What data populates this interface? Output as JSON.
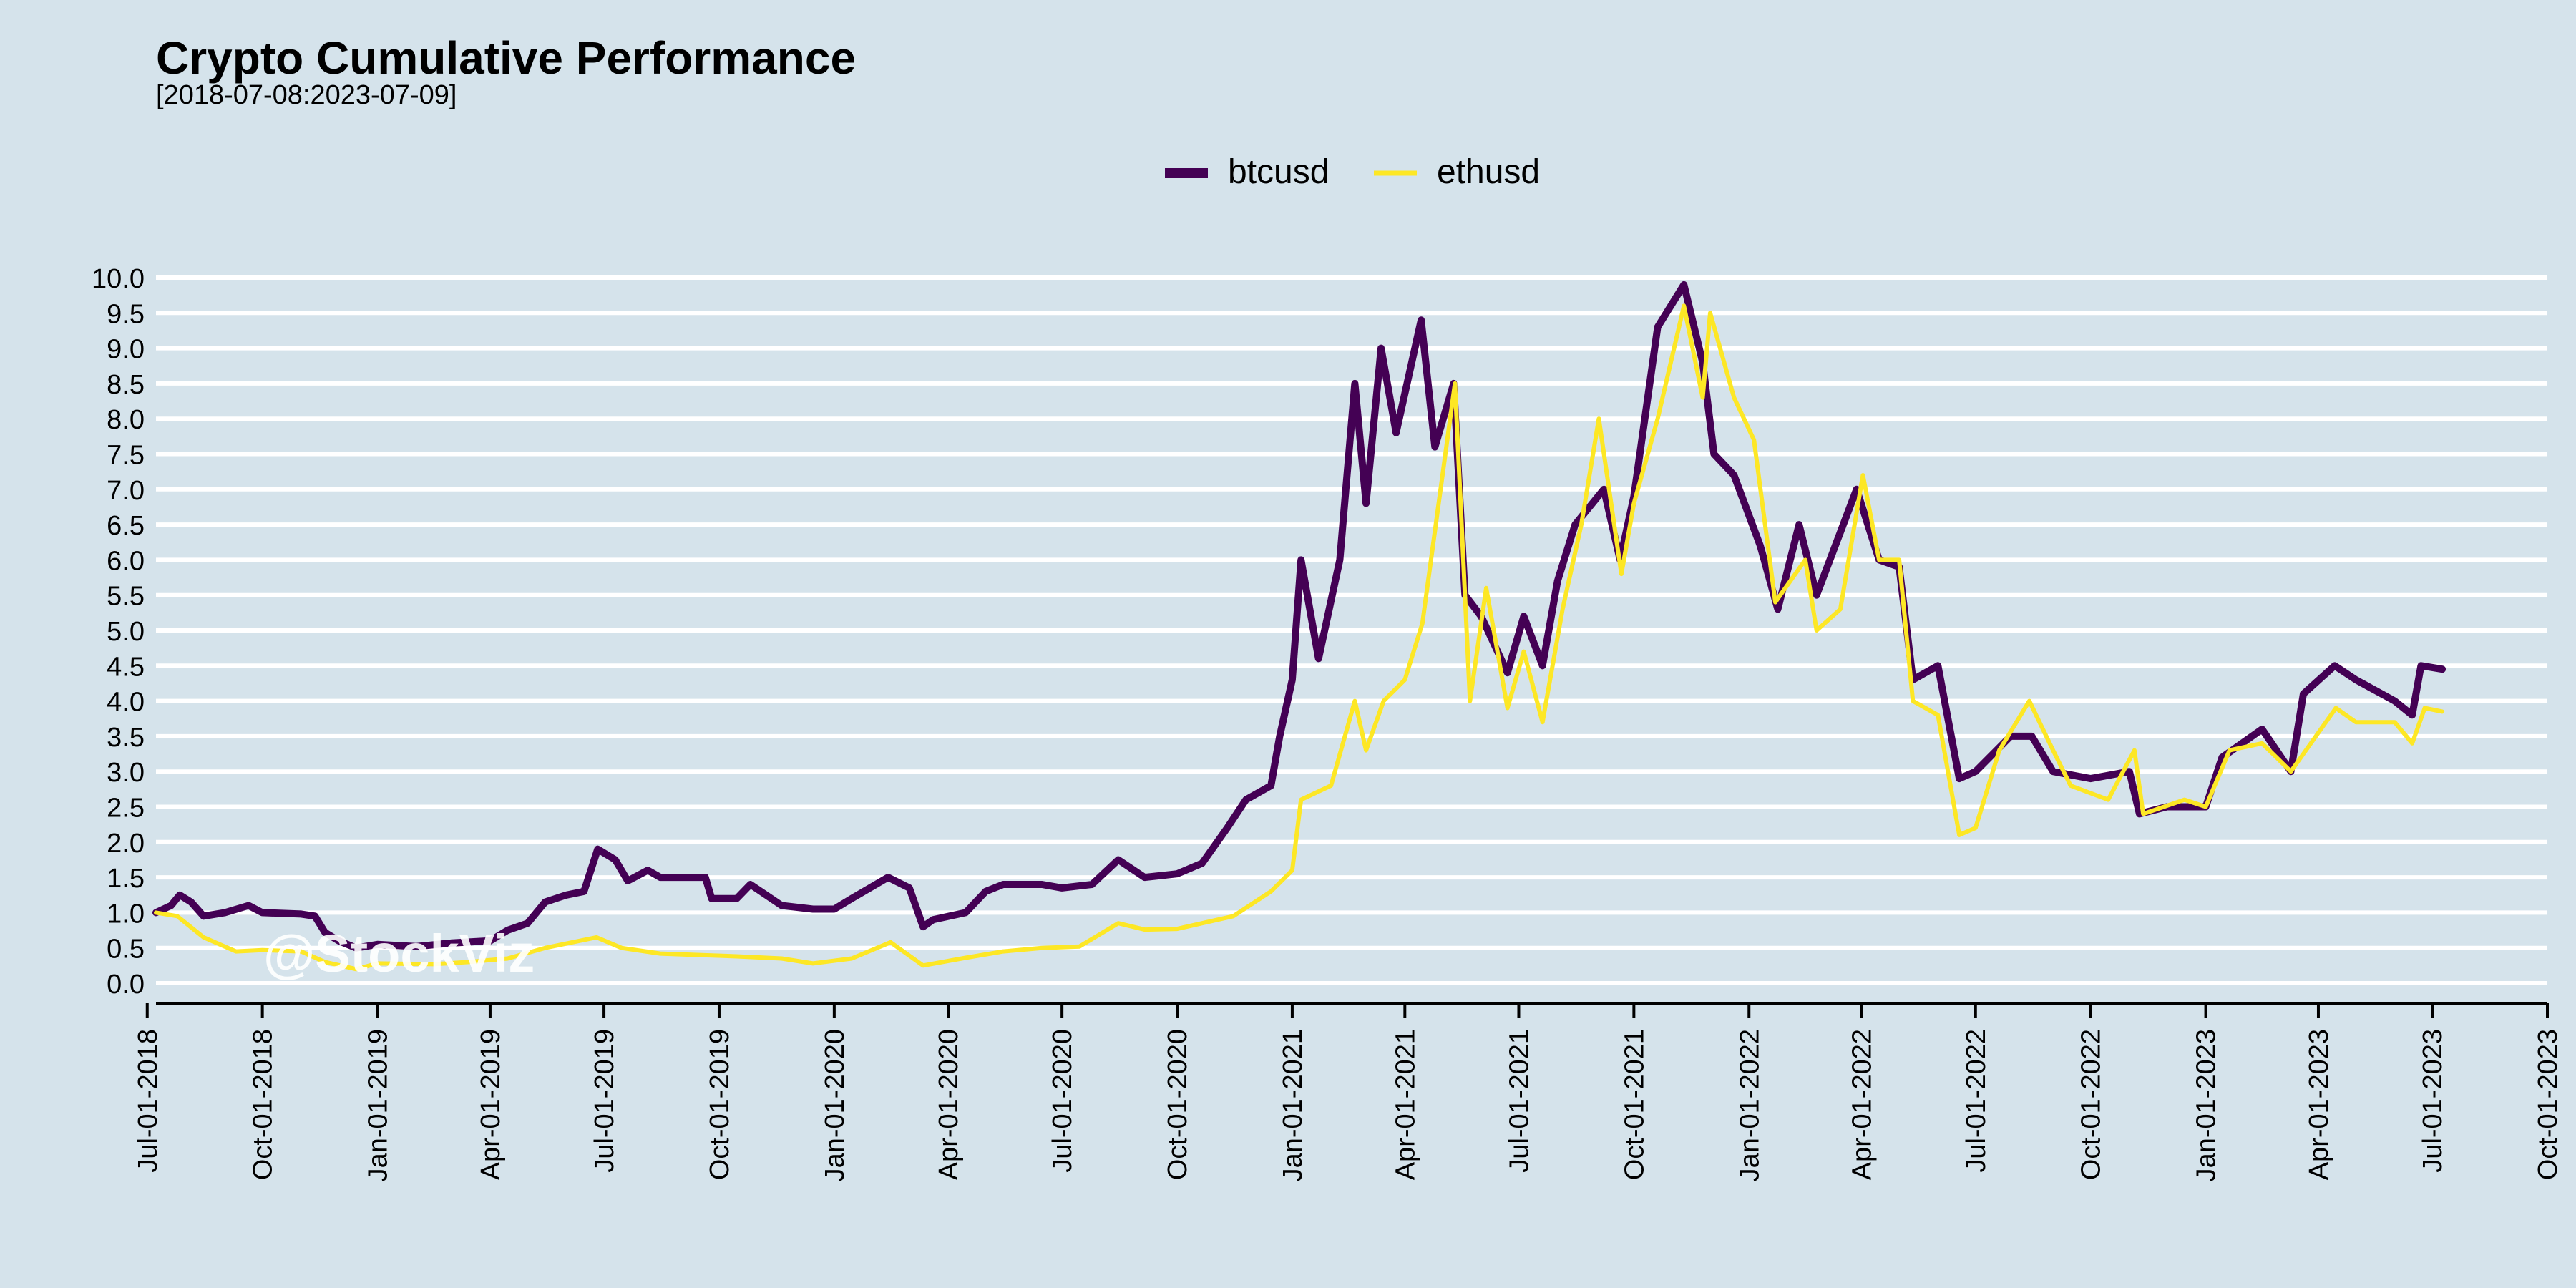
{
  "chart_data": {
    "type": "line",
    "title": "Crypto Cumulative Performance",
    "subtitle": "[2018-07-08:2023-07-09]",
    "xlabel": "",
    "ylabel": "",
    "watermark": "@StockViz",
    "legend_position": "top",
    "grid": true,
    "x_type": "date",
    "xlim": [
      "2018-07-08",
      "2023-10-01"
    ],
    "ylim": [
      0,
      10
    ],
    "y_ticks": [
      "0.0",
      "0.5",
      "1.0",
      "1.5",
      "2.0",
      "2.5",
      "3.0",
      "3.5",
      "4.0",
      "4.5",
      "5.0",
      "5.5",
      "6.0",
      "6.5",
      "7.0",
      "7.5",
      "8.0",
      "8.5",
      "9.0",
      "9.5",
      "10.0"
    ],
    "x_ticks": [
      "Jul-01-2018",
      "Oct-01-2018",
      "Jan-01-2019",
      "Apr-01-2019",
      "Jul-01-2019",
      "Oct-01-2019",
      "Jan-01-2020",
      "Apr-01-2020",
      "Jul-01-2020",
      "Oct-01-2020",
      "Jan-01-2021",
      "Apr-01-2021",
      "Jul-01-2021",
      "Oct-01-2021",
      "Jan-01-2022",
      "Apr-01-2022",
      "Jul-01-2022",
      "Oct-01-2022",
      "Jan-01-2023",
      "Apr-01-2023",
      "Jul-01-2023",
      "Oct-01-2023"
    ],
    "series": [
      {
        "name": "btcusd",
        "color": "#440154",
        "points": [
          [
            "2018-07-08",
            1.0
          ],
          [
            "2018-07-20",
            1.1
          ],
          [
            "2018-07-27",
            1.25
          ],
          [
            "2018-08-05",
            1.15
          ],
          [
            "2018-08-15",
            0.95
          ],
          [
            "2018-09-01",
            1.0
          ],
          [
            "2018-09-20",
            1.1
          ],
          [
            "2018-10-01",
            1.0
          ],
          [
            "2018-11-01",
            0.98
          ],
          [
            "2018-11-12",
            0.95
          ],
          [
            "2018-11-20",
            0.72
          ],
          [
            "2018-12-01",
            0.6
          ],
          [
            "2018-12-15",
            0.5
          ],
          [
            "2019-01-01",
            0.55
          ],
          [
            "2019-02-01",
            0.52
          ],
          [
            "2019-03-01",
            0.57
          ],
          [
            "2019-04-01",
            0.6
          ],
          [
            "2019-04-15",
            0.75
          ],
          [
            "2019-05-01",
            0.85
          ],
          [
            "2019-05-15",
            1.15
          ],
          [
            "2019-06-01",
            1.25
          ],
          [
            "2019-06-15",
            1.3
          ],
          [
            "2019-06-26",
            1.9
          ],
          [
            "2019-07-10",
            1.75
          ],
          [
            "2019-07-20",
            1.45
          ],
          [
            "2019-08-05",
            1.6
          ],
          [
            "2019-08-15",
            1.5
          ],
          [
            "2019-09-01",
            1.5
          ],
          [
            "2019-09-20",
            1.5
          ],
          [
            "2019-09-25",
            1.2
          ],
          [
            "2019-10-15",
            1.2
          ],
          [
            "2019-10-26",
            1.4
          ],
          [
            "2019-11-20",
            1.1
          ],
          [
            "2019-12-15",
            1.05
          ],
          [
            "2020-01-01",
            1.05
          ],
          [
            "2020-01-15",
            1.2
          ],
          [
            "2020-02-13",
            1.5
          ],
          [
            "2020-03-01",
            1.35
          ],
          [
            "2020-03-12",
            0.8
          ],
          [
            "2020-03-20",
            0.9
          ],
          [
            "2020-04-15",
            1.0
          ],
          [
            "2020-05-01",
            1.3
          ],
          [
            "2020-05-15",
            1.4
          ],
          [
            "2020-06-15",
            1.4
          ],
          [
            "2020-07-01",
            1.35
          ],
          [
            "2020-07-25",
            1.4
          ],
          [
            "2020-08-15",
            1.75
          ],
          [
            "2020-09-05",
            1.5
          ],
          [
            "2020-10-01",
            1.55
          ],
          [
            "2020-10-21",
            1.7
          ],
          [
            "2020-11-10",
            2.2
          ],
          [
            "2020-11-25",
            2.6
          ],
          [
            "2020-12-15",
            2.8
          ],
          [
            "2020-12-22",
            3.5
          ],
          [
            "2021-01-01",
            4.3
          ],
          [
            "2021-01-08",
            6.0
          ],
          [
            "2021-01-22",
            4.6
          ],
          [
            "2021-02-08",
            6.0
          ],
          [
            "2021-02-20",
            8.5
          ],
          [
            "2021-03-01",
            6.8
          ],
          [
            "2021-03-13",
            9.0
          ],
          [
            "2021-03-25",
            7.8
          ],
          [
            "2021-04-14",
            9.4
          ],
          [
            "2021-04-25",
            7.6
          ],
          [
            "2021-05-10",
            8.5
          ],
          [
            "2021-05-19",
            5.5
          ],
          [
            "2021-06-01",
            5.2
          ],
          [
            "2021-06-22",
            4.4
          ],
          [
            "2021-07-05",
            5.2
          ],
          [
            "2021-07-20",
            4.5
          ],
          [
            "2021-08-01",
            5.7
          ],
          [
            "2021-08-15",
            6.5
          ],
          [
            "2021-09-07",
            7.0
          ],
          [
            "2021-09-20",
            6.0
          ],
          [
            "2021-10-01",
            6.9
          ],
          [
            "2021-10-20",
            9.3
          ],
          [
            "2021-11-10",
            9.9
          ],
          [
            "2021-11-25",
            8.8
          ],
          [
            "2021-12-04",
            7.5
          ],
          [
            "2021-12-20",
            7.2
          ],
          [
            "2022-01-10",
            6.2
          ],
          [
            "2022-01-24",
            5.3
          ],
          [
            "2022-02-10",
            6.5
          ],
          [
            "2022-02-24",
            5.5
          ],
          [
            "2022-03-28",
            7.0
          ],
          [
            "2022-04-15",
            6.0
          ],
          [
            "2022-05-01",
            5.9
          ],
          [
            "2022-05-12",
            4.3
          ],
          [
            "2022-06-01",
            4.5
          ],
          [
            "2022-06-18",
            2.9
          ],
          [
            "2022-07-01",
            3.0
          ],
          [
            "2022-07-29",
            3.5
          ],
          [
            "2022-08-15",
            3.5
          ],
          [
            "2022-09-01",
            3.0
          ],
          [
            "2022-10-01",
            2.9
          ],
          [
            "2022-11-01",
            3.0
          ],
          [
            "2022-11-09",
            2.4
          ],
          [
            "2022-12-01",
            2.5
          ],
          [
            "2023-01-01",
            2.5
          ],
          [
            "2023-01-14",
            3.2
          ],
          [
            "2023-02-15",
            3.6
          ],
          [
            "2023-03-10",
            3.0
          ],
          [
            "2023-03-20",
            4.1
          ],
          [
            "2023-04-14",
            4.5
          ],
          [
            "2023-05-01",
            4.3
          ],
          [
            "2023-06-01",
            4.0
          ],
          [
            "2023-06-15",
            3.8
          ],
          [
            "2023-06-22",
            4.5
          ],
          [
            "2023-07-09",
            4.45
          ]
        ]
      },
      {
        "name": "ethusd",
        "color": "#fde725",
        "points": [
          [
            "2018-07-08",
            1.0
          ],
          [
            "2018-07-25",
            0.95
          ],
          [
            "2018-08-15",
            0.65
          ],
          [
            "2018-09-10",
            0.45
          ],
          [
            "2018-10-01",
            0.47
          ],
          [
            "2018-11-01",
            0.45
          ],
          [
            "2018-11-20",
            0.3
          ],
          [
            "2018-12-15",
            0.2
          ],
          [
            "2019-01-01",
            0.28
          ],
          [
            "2019-02-15",
            0.27
          ],
          [
            "2019-03-15",
            0.3
          ],
          [
            "2019-04-15",
            0.35
          ],
          [
            "2019-05-15",
            0.5
          ],
          [
            "2019-06-25",
            0.65
          ],
          [
            "2019-07-15",
            0.5
          ],
          [
            "2019-08-15",
            0.42
          ],
          [
            "2019-09-15",
            0.4
          ],
          [
            "2019-10-15",
            0.38
          ],
          [
            "2019-11-20",
            0.35
          ],
          [
            "2019-12-15",
            0.28
          ],
          [
            "2020-01-15",
            0.35
          ],
          [
            "2020-02-15",
            0.58
          ],
          [
            "2020-03-12",
            0.25
          ],
          [
            "2020-04-15",
            0.36
          ],
          [
            "2020-05-15",
            0.45
          ],
          [
            "2020-06-15",
            0.5
          ],
          [
            "2020-07-15",
            0.52
          ],
          [
            "2020-08-15",
            0.85
          ],
          [
            "2020-09-05",
            0.76
          ],
          [
            "2020-10-01",
            0.77
          ],
          [
            "2020-11-15",
            0.95
          ],
          [
            "2020-12-15",
            1.3
          ],
          [
            "2021-01-01",
            1.6
          ],
          [
            "2021-01-08",
            2.6
          ],
          [
            "2021-02-01",
            2.8
          ],
          [
            "2021-02-20",
            4.0
          ],
          [
            "2021-03-01",
            3.3
          ],
          [
            "2021-03-15",
            4.0
          ],
          [
            "2021-04-01",
            4.3
          ],
          [
            "2021-04-15",
            5.1
          ],
          [
            "2021-05-11",
            8.5
          ],
          [
            "2021-05-23",
            4.0
          ],
          [
            "2021-06-05",
            5.6
          ],
          [
            "2021-06-22",
            3.9
          ],
          [
            "2021-07-05",
            4.7
          ],
          [
            "2021-07-20",
            3.7
          ],
          [
            "2021-08-05",
            5.3
          ],
          [
            "2021-08-20",
            6.5
          ],
          [
            "2021-09-03",
            8.0
          ],
          [
            "2021-09-21",
            5.8
          ],
          [
            "2021-10-01",
            6.8
          ],
          [
            "2021-10-20",
            8.0
          ],
          [
            "2021-11-10",
            9.6
          ],
          [
            "2021-11-25",
            8.3
          ],
          [
            "2021-12-01",
            9.5
          ],
          [
            "2021-12-20",
            8.3
          ],
          [
            "2022-01-05",
            7.7
          ],
          [
            "2022-01-22",
            5.4
          ],
          [
            "2022-02-15",
            6.0
          ],
          [
            "2022-02-24",
            5.0
          ],
          [
            "2022-03-15",
            5.3
          ],
          [
            "2022-04-02",
            7.2
          ],
          [
            "2022-04-15",
            6.0
          ],
          [
            "2022-05-01",
            6.0
          ],
          [
            "2022-05-12",
            4.0
          ],
          [
            "2022-06-01",
            3.8
          ],
          [
            "2022-06-18",
            2.1
          ],
          [
            "2022-07-01",
            2.2
          ],
          [
            "2022-07-20",
            3.3
          ],
          [
            "2022-08-13",
            4.0
          ],
          [
            "2022-09-01",
            3.3
          ],
          [
            "2022-09-15",
            2.8
          ],
          [
            "2022-10-15",
            2.6
          ],
          [
            "2022-11-05",
            3.3
          ],
          [
            "2022-11-12",
            2.4
          ],
          [
            "2022-12-15",
            2.6
          ],
          [
            "2023-01-01",
            2.5
          ],
          [
            "2023-01-20",
            3.3
          ],
          [
            "2023-02-15",
            3.4
          ],
          [
            "2023-03-10",
            3.0
          ],
          [
            "2023-04-15",
            3.9
          ],
          [
            "2023-05-01",
            3.7
          ],
          [
            "2023-06-01",
            3.7
          ],
          [
            "2023-06-15",
            3.4
          ],
          [
            "2023-06-25",
            3.9
          ],
          [
            "2023-07-09",
            3.85
          ]
        ]
      }
    ]
  }
}
